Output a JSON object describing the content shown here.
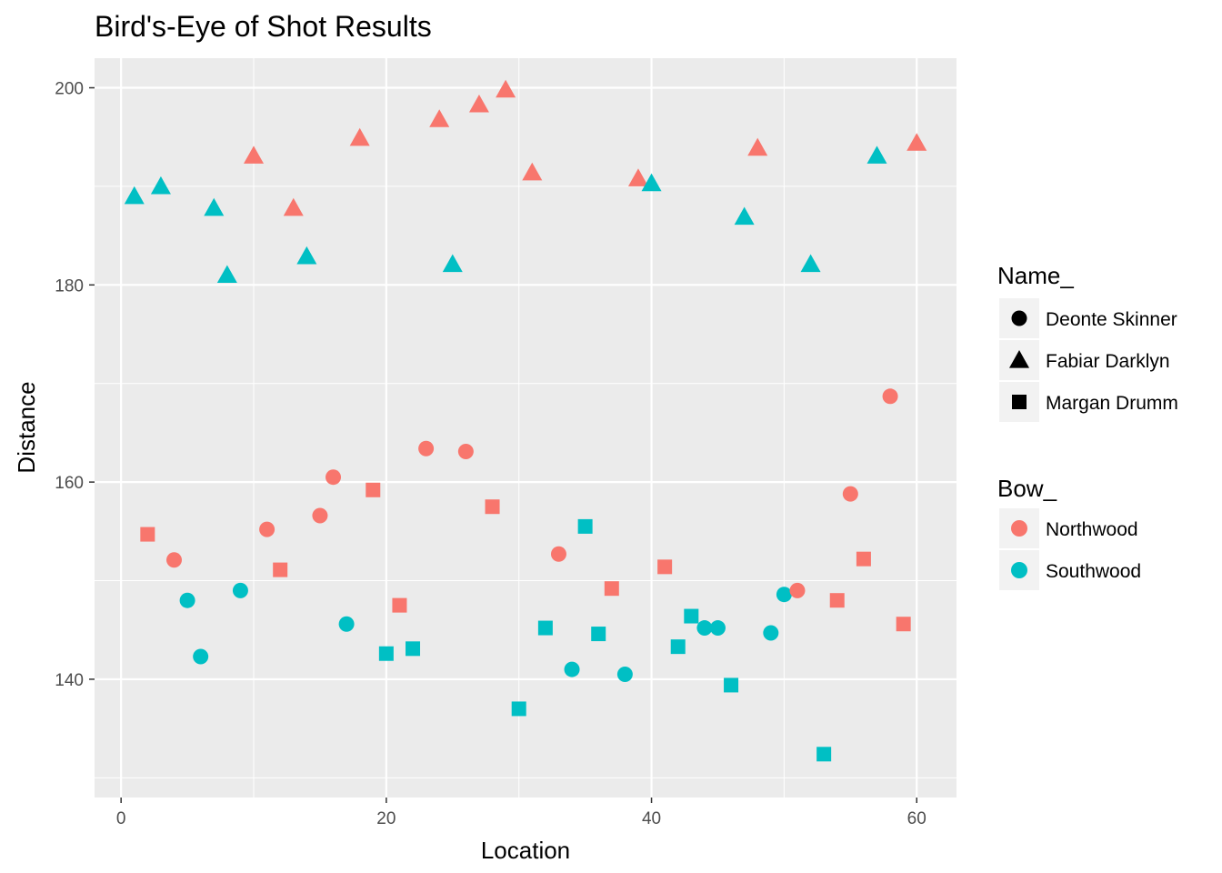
{
  "chart_data": {
    "type": "scatter",
    "title": "Bird's-Eye of Shot Results",
    "xlabel": "Location",
    "ylabel": "Distance",
    "xlim": [
      -2,
      63
    ],
    "ylim": [
      128,
      203
    ],
    "x_ticks": [
      0,
      20,
      40,
      60
    ],
    "y_ticks": [
      140,
      160,
      180,
      200
    ],
    "grid": true,
    "legend_position": "right",
    "shape_legend": {
      "title": "Name_",
      "entries": [
        {
          "label": "Deonte Skinner",
          "shape": "circle"
        },
        {
          "label": "Fabiar Darklyn",
          "shape": "triangle"
        },
        {
          "label": "Margan Drumm",
          "shape": "square"
        }
      ]
    },
    "color_legend": {
      "title": "Bow_",
      "entries": [
        {
          "label": "Northwood",
          "color": "#F8766D"
        },
        {
          "label": "Southwood",
          "color": "#00BFC4"
        }
      ]
    },
    "points": [
      {
        "x": 1,
        "y": 189,
        "name": "Fabiar Darklyn",
        "bow": "Southwood"
      },
      {
        "x": 2,
        "y": 154.7,
        "name": "Margan Drumm",
        "bow": "Northwood"
      },
      {
        "x": 3,
        "y": 190,
        "name": "Fabiar Darklyn",
        "bow": "Southwood"
      },
      {
        "x": 4,
        "y": 152.1,
        "name": "Deonte Skinner",
        "bow": "Northwood"
      },
      {
        "x": 5,
        "y": 148,
        "name": "Deonte Skinner",
        "bow": "Southwood"
      },
      {
        "x": 6,
        "y": 142.3,
        "name": "Deonte Skinner",
        "bow": "Southwood"
      },
      {
        "x": 7,
        "y": 187.8,
        "name": "Fabiar Darklyn",
        "bow": "Southwood"
      },
      {
        "x": 8,
        "y": 181,
        "name": "Fabiar Darklyn",
        "bow": "Southwood"
      },
      {
        "x": 9,
        "y": 149,
        "name": "Deonte Skinner",
        "bow": "Southwood"
      },
      {
        "x": 10,
        "y": 193.1,
        "name": "Fabiar Darklyn",
        "bow": "Northwood"
      },
      {
        "x": 11,
        "y": 155.2,
        "name": "Deonte Skinner",
        "bow": "Northwood"
      },
      {
        "x": 12,
        "y": 151.1,
        "name": "Margan Drumm",
        "bow": "Northwood"
      },
      {
        "x": 13,
        "y": 187.8,
        "name": "Fabiar Darklyn",
        "bow": "Northwood"
      },
      {
        "x": 14,
        "y": 182.9,
        "name": "Fabiar Darklyn",
        "bow": "Southwood"
      },
      {
        "x": 15,
        "y": 156.6,
        "name": "Deonte Skinner",
        "bow": "Northwood"
      },
      {
        "x": 16,
        "y": 160.5,
        "name": "Deonte Skinner",
        "bow": "Northwood"
      },
      {
        "x": 17,
        "y": 145.6,
        "name": "Deonte Skinner",
        "bow": "Southwood"
      },
      {
        "x": 18,
        "y": 194.9,
        "name": "Fabiar Darklyn",
        "bow": "Northwood"
      },
      {
        "x": 19,
        "y": 159.2,
        "name": "Margan Drumm",
        "bow": "Northwood"
      },
      {
        "x": 20,
        "y": 142.6,
        "name": "Margan Drumm",
        "bow": "Southwood"
      },
      {
        "x": 21,
        "y": 147.5,
        "name": "Margan Drumm",
        "bow": "Northwood"
      },
      {
        "x": 22,
        "y": 143.1,
        "name": "Margan Drumm",
        "bow": "Southwood"
      },
      {
        "x": 23,
        "y": 163.4,
        "name": "Deonte Skinner",
        "bow": "Northwood"
      },
      {
        "x": 24,
        "y": 196.8,
        "name": "Fabiar Darklyn",
        "bow": "Northwood"
      },
      {
        "x": 25,
        "y": 182.1,
        "name": "Fabiar Darklyn",
        "bow": "Southwood"
      },
      {
        "x": 26,
        "y": 163.1,
        "name": "Deonte Skinner",
        "bow": "Northwood"
      },
      {
        "x": 27,
        "y": 198.3,
        "name": "Fabiar Darklyn",
        "bow": "Northwood"
      },
      {
        "x": 28,
        "y": 157.5,
        "name": "Margan Drumm",
        "bow": "Northwood"
      },
      {
        "x": 29,
        "y": 199.8,
        "name": "Fabiar Darklyn",
        "bow": "Northwood"
      },
      {
        "x": 30,
        "y": 137,
        "name": "Margan Drumm",
        "bow": "Southwood"
      },
      {
        "x": 31,
        "y": 191.4,
        "name": "Fabiar Darklyn",
        "bow": "Northwood"
      },
      {
        "x": 32,
        "y": 145.2,
        "name": "Margan Drumm",
        "bow": "Southwood"
      },
      {
        "x": 33,
        "y": 152.7,
        "name": "Deonte Skinner",
        "bow": "Northwood"
      },
      {
        "x": 34,
        "y": 141,
        "name": "Deonte Skinner",
        "bow": "Southwood"
      },
      {
        "x": 35,
        "y": 155.5,
        "name": "Margan Drumm",
        "bow": "Southwood"
      },
      {
        "x": 36,
        "y": 144.6,
        "name": "Margan Drumm",
        "bow": "Southwood"
      },
      {
        "x": 37,
        "y": 149.2,
        "name": "Margan Drumm",
        "bow": "Northwood"
      },
      {
        "x": 38,
        "y": 140.5,
        "name": "Deonte Skinner",
        "bow": "Southwood"
      },
      {
        "x": 39,
        "y": 190.8,
        "name": "Fabiar Darklyn",
        "bow": "Northwood"
      },
      {
        "x": 40,
        "y": 190.3,
        "name": "Fabiar Darklyn",
        "bow": "Southwood"
      },
      {
        "x": 41,
        "y": 151.4,
        "name": "Margan Drumm",
        "bow": "Northwood"
      },
      {
        "x": 42,
        "y": 143.3,
        "name": "Margan Drumm",
        "bow": "Southwood"
      },
      {
        "x": 43,
        "y": 146.4,
        "name": "Margan Drumm",
        "bow": "Southwood"
      },
      {
        "x": 44,
        "y": 145.2,
        "name": "Deonte Skinner",
        "bow": "Southwood"
      },
      {
        "x": 45,
        "y": 145.2,
        "name": "Deonte Skinner",
        "bow": "Southwood"
      },
      {
        "x": 46,
        "y": 139.4,
        "name": "Margan Drumm",
        "bow": "Southwood"
      },
      {
        "x": 47,
        "y": 186.9,
        "name": "Fabiar Darklyn",
        "bow": "Southwood"
      },
      {
        "x": 48,
        "y": 193.9,
        "name": "Fabiar Darklyn",
        "bow": "Northwood"
      },
      {
        "x": 49,
        "y": 144.7,
        "name": "Deonte Skinner",
        "bow": "Southwood"
      },
      {
        "x": 50,
        "y": 148.6,
        "name": "Deonte Skinner",
        "bow": "Southwood"
      },
      {
        "x": 51,
        "y": 149,
        "name": "Deonte Skinner",
        "bow": "Northwood"
      },
      {
        "x": 52,
        "y": 182.1,
        "name": "Fabiar Darklyn",
        "bow": "Southwood"
      },
      {
        "x": 53,
        "y": 132.4,
        "name": "Margan Drumm",
        "bow": "Southwood"
      },
      {
        "x": 54,
        "y": 148,
        "name": "Margan Drumm",
        "bow": "Northwood"
      },
      {
        "x": 55,
        "y": 158.8,
        "name": "Deonte Skinner",
        "bow": "Northwood"
      },
      {
        "x": 56,
        "y": 152.2,
        "name": "Margan Drumm",
        "bow": "Northwood"
      },
      {
        "x": 57,
        "y": 193.1,
        "name": "Fabiar Darklyn",
        "bow": "Southwood"
      },
      {
        "x": 58,
        "y": 168.7,
        "name": "Deonte Skinner",
        "bow": "Northwood"
      },
      {
        "x": 59,
        "y": 145.6,
        "name": "Margan Drumm",
        "bow": "Northwood"
      },
      {
        "x": 60,
        "y": 194.4,
        "name": "Fabiar Darklyn",
        "bow": "Northwood"
      }
    ]
  }
}
